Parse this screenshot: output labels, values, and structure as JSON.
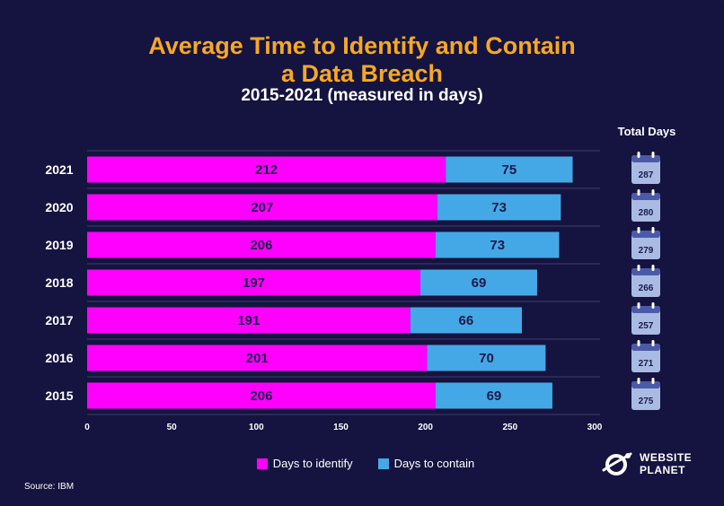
{
  "header": {
    "title_line1": "Average Time to Identify and Contain",
    "title_line2": "a Data Breach",
    "subtitle": "2015-2021 (measured in days)"
  },
  "chart_data": {
    "type": "bar",
    "orientation": "horizontal",
    "stacked": true,
    "categories": [
      "2021",
      "2020",
      "2019",
      "2018",
      "2017",
      "2016",
      "2015"
    ],
    "series": [
      {
        "name": "Days to identify",
        "color": "#ff00ff",
        "values": [
          212,
          207,
          206,
          197,
          191,
          201,
          206
        ]
      },
      {
        "name": "Days to contain",
        "color": "#45a8e6",
        "values": [
          75,
          73,
          73,
          69,
          66,
          70,
          69
        ]
      }
    ],
    "totals_header": "Total Days",
    "totals": [
      287,
      280,
      279,
      266,
      257,
      271,
      275
    ],
    "xlim": [
      0,
      300
    ],
    "xticks": [
      0,
      50,
      100,
      150,
      200,
      250,
      300
    ],
    "grid": true,
    "legend_position": "bottom"
  },
  "footer": {
    "source": "Source: IBM",
    "logo_line1": "WEBSITE",
    "logo_line2": "PLANET"
  },
  "colors": {
    "background": "#15133f",
    "title": "#f7a823",
    "calendar_body": "#a9bbe3",
    "calendar_top": "#4b5aa8"
  }
}
